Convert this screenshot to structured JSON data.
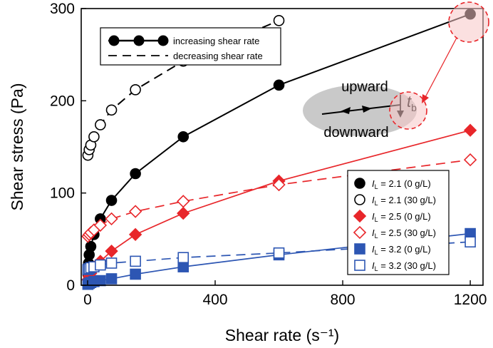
{
  "chart_data": {
    "type": "scatter",
    "xlabel": "Shear rate (s⁻¹)",
    "ylabel": "Shear stress (Pa)",
    "xlim": [
      -20,
      1240
    ],
    "ylim": [
      0,
      300
    ],
    "xticks": [
      0,
      400,
      800,
      1200
    ],
    "yticks": [
      0,
      100,
      200,
      300
    ],
    "mode_legend": [
      {
        "label": "increasing shear rate",
        "style": "solid-dots"
      },
      {
        "label": "decreasing shear rate",
        "style": "dashed"
      }
    ],
    "legend_placement": "bottom-right",
    "series": [
      {
        "name": "I_L = 2.1 (0 g/L)",
        "legend_main": "I",
        "legend_sub": "L",
        "legend_rest": " = 2.1 (0 g/L)",
        "color": "#000000",
        "marker": "circle",
        "filled": true,
        "line": "solid",
        "x": [
          1,
          3,
          5,
          10,
          20,
          40,
          75,
          150,
          300,
          600,
          1200
        ],
        "y": [
          12,
          24,
          33,
          42,
          55,
          72,
          92,
          121,
          161,
          217,
          294
        ]
      },
      {
        "name": "I_L = 2.1 (30 g/L)",
        "legend_main": "I",
        "legend_sub": "L",
        "legend_rest": " = 2.1 (30 g/L)",
        "color": "#000000",
        "marker": "circle",
        "filled": false,
        "line": "dashed",
        "x": [
          1,
          5,
          10,
          20,
          40,
          75,
          150,
          300,
          600
        ],
        "y": [
          141,
          147,
          152,
          161,
          174,
          190,
          212,
          243,
          287
        ]
      },
      {
        "name": "I_L = 2.5 (0 g/L)",
        "legend_main": "I",
        "legend_sub": "L",
        "legend_rest": " = 2.5 (0 g/L)",
        "color": "#e8262a",
        "marker": "diamond",
        "filled": true,
        "line": "solid",
        "x": [
          1,
          5,
          10,
          20,
          40,
          75,
          150,
          300,
          600,
          1200
        ],
        "y": [
          6,
          10,
          13,
          18,
          26,
          37,
          55,
          78,
          113,
          168
        ]
      },
      {
        "name": "I_L = 2.5 (30 g/L)",
        "legend_main": "I",
        "legend_sub": "L",
        "legend_rest": " = 2.5 (30 g/L)",
        "color": "#e8262a",
        "marker": "diamond",
        "filled": false,
        "line": "dashed",
        "x": [
          1,
          5,
          10,
          20,
          40,
          75,
          150,
          300,
          600,
          1200
        ],
        "y": [
          53,
          55,
          57,
          60,
          65,
          72,
          80,
          91,
          109,
          136
        ]
      },
      {
        "name": "I_L = 3.2 (0 g/L)",
        "legend_main": "I",
        "legend_sub": "L",
        "legend_rest": " = 3.2 (0 g/L)",
        "color": "#2d56b3",
        "marker": "square",
        "filled": true,
        "line": "solid",
        "x": [
          1,
          5,
          10,
          20,
          40,
          75,
          150,
          300,
          600,
          1200
        ],
        "y": [
          1,
          2,
          3,
          4,
          5,
          7,
          12,
          20,
          33,
          56
        ]
      },
      {
        "name": "I_L = 3.2 (30 g/L)",
        "legend_main": "I",
        "legend_sub": "L",
        "legend_rest": " = 3.2 (30 g/L)",
        "color": "#2d56b3",
        "marker": "square",
        "filled": false,
        "line": "dashed",
        "x": [
          1,
          5,
          10,
          20,
          40,
          75,
          150,
          300,
          600,
          1200
        ],
        "y": [
          17,
          18,
          19,
          20,
          22,
          24,
          26,
          30,
          35,
          47
        ]
      }
    ],
    "inset": {
      "upward_label": "upward",
      "downward_label": "downward",
      "tb_main": "t",
      "tb_sub": "b"
    }
  }
}
